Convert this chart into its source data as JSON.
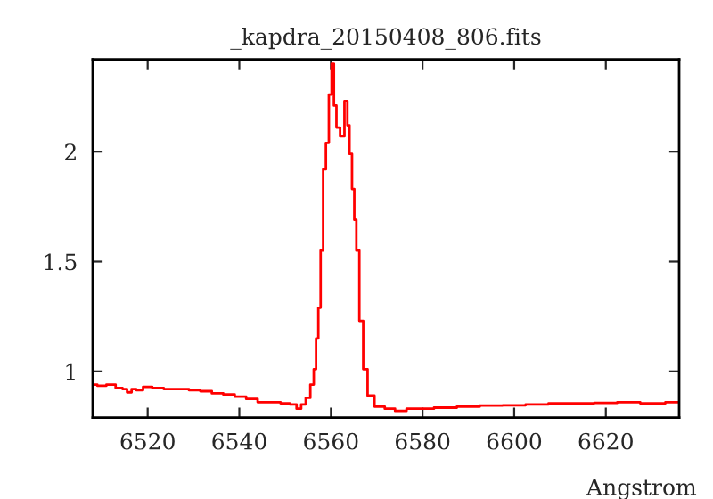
{
  "chart_data": {
    "type": "step",
    "title": "_kapdra_20150408_806.fits",
    "xlabel": "Angstrom",
    "x": [
      6508,
      6510,
      6512,
      6514,
      6515,
      6516,
      6517,
      6518,
      6520,
      6522,
      6525,
      6528,
      6530,
      6533,
      6535,
      6538,
      6540,
      6543,
      6545,
      6548,
      6550,
      6552,
      6553,
      6554,
      6555,
      6556,
      6556.5,
      6557,
      6557.5,
      6558,
      6558.6,
      6559.2,
      6559.9,
      6560.4,
      6560.9,
      6561.5,
      6562.5,
      6563.4,
      6563.8,
      6564.3,
      6564.9,
      6565.3,
      6565.8,
      6566.6,
      6567.5,
      6568.5,
      6570.5,
      6573,
      6575,
      6578,
      6580,
      6585,
      6590,
      6595,
      6600,
      6605,
      6610,
      6615,
      6620,
      6625,
      6630,
      6636
    ],
    "series": [
      {
        "color": "#ff0000",
        "values": [
          0.94,
          0.935,
          0.94,
          0.925,
          0.92,
          0.905,
          0.92,
          0.915,
          0.93,
          0.925,
          0.92,
          0.92,
          0.915,
          0.91,
          0.9,
          0.895,
          0.885,
          0.875,
          0.86,
          0.86,
          0.855,
          0.85,
          0.83,
          0.85,
          0.88,
          0.94,
          1.01,
          1.15,
          1.29,
          1.55,
          1.92,
          2.04,
          2.26,
          2.4,
          2.21,
          2.11,
          2.07,
          2.23,
          2.12,
          1.99,
          1.83,
          1.69,
          1.55,
          1.23,
          1.01,
          0.89,
          0.84,
          0.83,
          0.82,
          0.83,
          0.83,
          0.835,
          0.84,
          0.845,
          0.846,
          0.85,
          0.855,
          0.855,
          0.857,
          0.86,
          0.855,
          0.86
        ]
      }
    ],
    "xlim": [
      6508,
      6636
    ],
    "ylim": [
      0.79,
      2.42
    ],
    "xticks": [
      6520,
      6540,
      6560,
      6580,
      6600,
      6620
    ],
    "yticks": [
      1,
      1.5,
      2
    ],
    "grid": false,
    "legend": false
  }
}
